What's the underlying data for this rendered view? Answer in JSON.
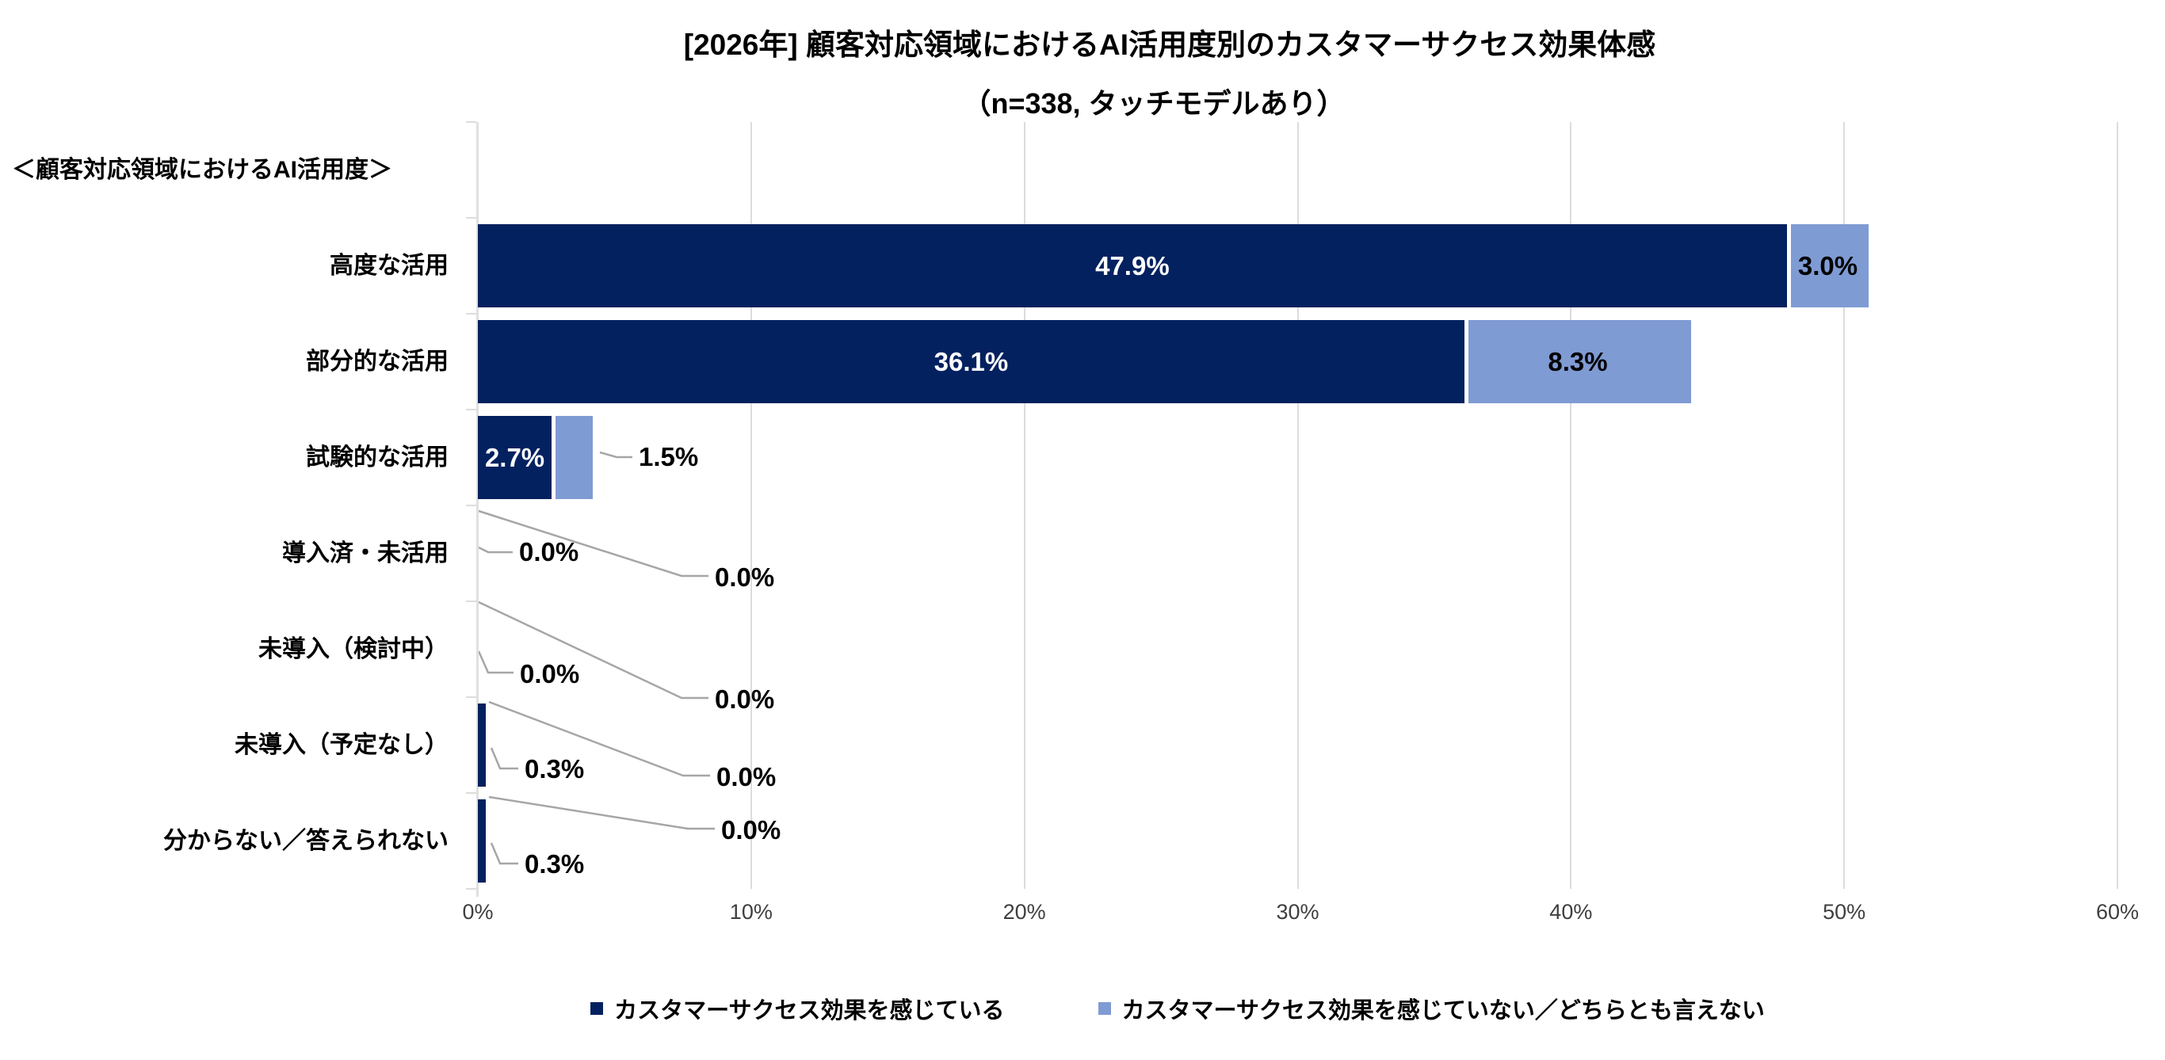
{
  "header": {
    "title": "[2026年] 顧客対応領域におけるAI活用度別のカスタマーサクセス効果体感",
    "subtitle": "（n=338, タッチモデルあり）"
  },
  "y_axis_header": "＜顧客対応領域におけるAI活用度＞",
  "chart_data": {
    "type": "bar",
    "orientation": "horizontal",
    "stacked": true,
    "title": "[2026年] 顧客対応領域におけるAI活用度別のカスタマーサクセス効果体感",
    "subtitle": "（n=338, タッチモデルあり）",
    "categories": [
      "高度な活用",
      "部分的な活用",
      "試験的な活用",
      "導入済・未活用",
      "未導入（検討中）",
      "未導入（予定なし）",
      "分からない／答えられない"
    ],
    "series": [
      {
        "name": "カスタマーサクセス効果を感じている",
        "color": "#03215f",
        "values": [
          47.9,
          36.1,
          2.7,
          0.0,
          0.0,
          0.3,
          0.3
        ]
      },
      {
        "name": "カスタマーサクセス効果を感じていない／どちらとも言えない",
        "color": "#7f9bd4",
        "values": [
          3.0,
          8.3,
          1.5,
          0.0,
          0.0,
          0.0,
          0.0
        ]
      }
    ],
    "data_labels": [
      [
        "47.9%",
        "3.0%"
      ],
      [
        "36.1%",
        "8.3%"
      ],
      [
        "2.7%",
        "1.5%"
      ],
      [
        "0.0%",
        "0.0%"
      ],
      [
        "0.0%",
        "0.0%"
      ],
      [
        "0.3%",
        "0.0%"
      ],
      [
        "0.3%",
        "0.0%"
      ]
    ],
    "xlim": [
      0,
      60
    ],
    "x_tick_labels": [
      "0%",
      "10%",
      "20%",
      "30%",
      "40%",
      "50%",
      "60%"
    ],
    "grid": true,
    "legend_position": "bottom",
    "colors": {
      "gridline": "#dcdcdc",
      "axis": "#e0e0e0",
      "leader_line": "#a6a6a6",
      "tick_text": "#3f3f3f",
      "label_on_dark": "#ffffff",
      "label_on_light": "#000000"
    }
  }
}
